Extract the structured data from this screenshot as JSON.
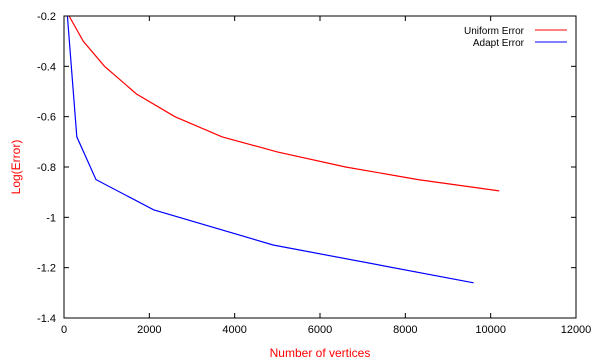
{
  "chart_data": {
    "type": "line",
    "xlabel": "Number of vertices",
    "ylabel": "Log(Error)",
    "xlim": [
      0,
      12000
    ],
    "ylim": [
      -1.4,
      -0.2
    ],
    "x_ticks": [
      0,
      2000,
      4000,
      6000,
      8000,
      10000,
      12000
    ],
    "y_ticks": [
      -0.2,
      -0.4,
      -0.6,
      -0.8,
      -1,
      -1.2,
      -1.4
    ],
    "x_tick_labels": [
      "0",
      "2000",
      "4000",
      "6000",
      "8000",
      "10000",
      "12000"
    ],
    "y_tick_labels": [
      "-0.2",
      "-0.4",
      "-0.6",
      "-0.8",
      "-1",
      "-1.2",
      "-1.4"
    ],
    "grid": false,
    "legend_position": "top-right",
    "label_color": "#ff0000",
    "series": [
      {
        "name": "Uniform Error",
        "color": "#ff0000",
        "points": [
          [
            120,
            -0.2
          ],
          [
            450,
            -0.3
          ],
          [
            950,
            -0.4
          ],
          [
            1700,
            -0.51
          ],
          [
            2600,
            -0.6
          ],
          [
            3700,
            -0.68
          ],
          [
            5000,
            -0.74
          ],
          [
            6600,
            -0.8
          ],
          [
            8300,
            -0.85
          ],
          [
            10200,
            -0.895
          ]
        ]
      },
      {
        "name": "Adapt Error",
        "color": "#0000ff",
        "points": [
          [
            80,
            -0.2
          ],
          [
            300,
            -0.68
          ],
          [
            750,
            -0.85
          ],
          [
            2100,
            -0.97
          ],
          [
            4900,
            -1.11
          ],
          [
            9600,
            -1.26
          ]
        ]
      }
    ]
  }
}
